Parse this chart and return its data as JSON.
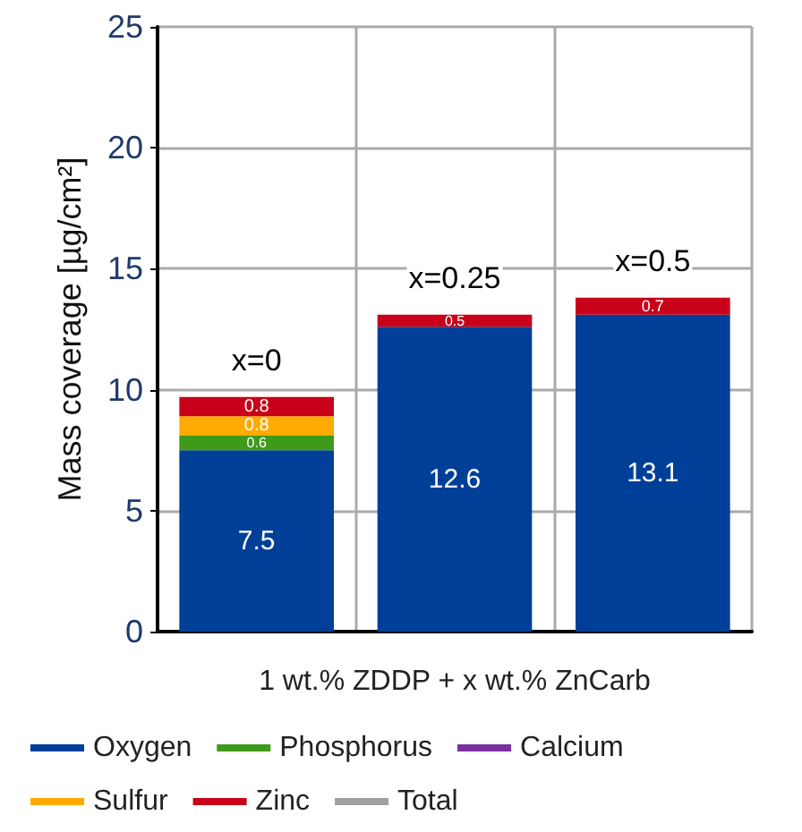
{
  "chart_data": {
    "type": "bar",
    "stacked": true,
    "xlabel": "1 wt.% ZDDP + x wt.% ZnCarb",
    "ylabel": "Mass coverage [µg/cm²]",
    "categories": [
      null,
      null,
      null
    ],
    "series": [
      {
        "name": "Oxygen",
        "color": "#003f98",
        "values": [
          7.5,
          12.6,
          13.1
        ]
      },
      {
        "name": "Phosphorus",
        "color": "#3f9a1a",
        "values": [
          0.6,
          null,
          null
        ]
      },
      {
        "name": "Calcium",
        "color": "#7b2fa0",
        "values": [
          null,
          null,
          null
        ]
      },
      {
        "name": "Sulfur",
        "color": "#ffaa00",
        "values": [
          0.8,
          null,
          null
        ]
      },
      {
        "name": "Zinc",
        "color": "#c8001a",
        "values": [
          0.8,
          0.5,
          0.7
        ]
      },
      {
        "name": "Total",
        "color": "#a0a0a0",
        "values": [
          null,
          null,
          null
        ]
      }
    ],
    "annotations": [
      {
        "text": "x=0",
        "y": 9.7
      },
      {
        "text": "x=0.25",
        "y": 13.1
      },
      {
        "text": "x=0.5",
        "y": 13.8
      }
    ],
    "ylim": [
      0,
      25
    ],
    "yticks": [
      0,
      5,
      10,
      15,
      20,
      25
    ],
    "grid": true,
    "legend": "bottom",
    "data_labels": true
  }
}
